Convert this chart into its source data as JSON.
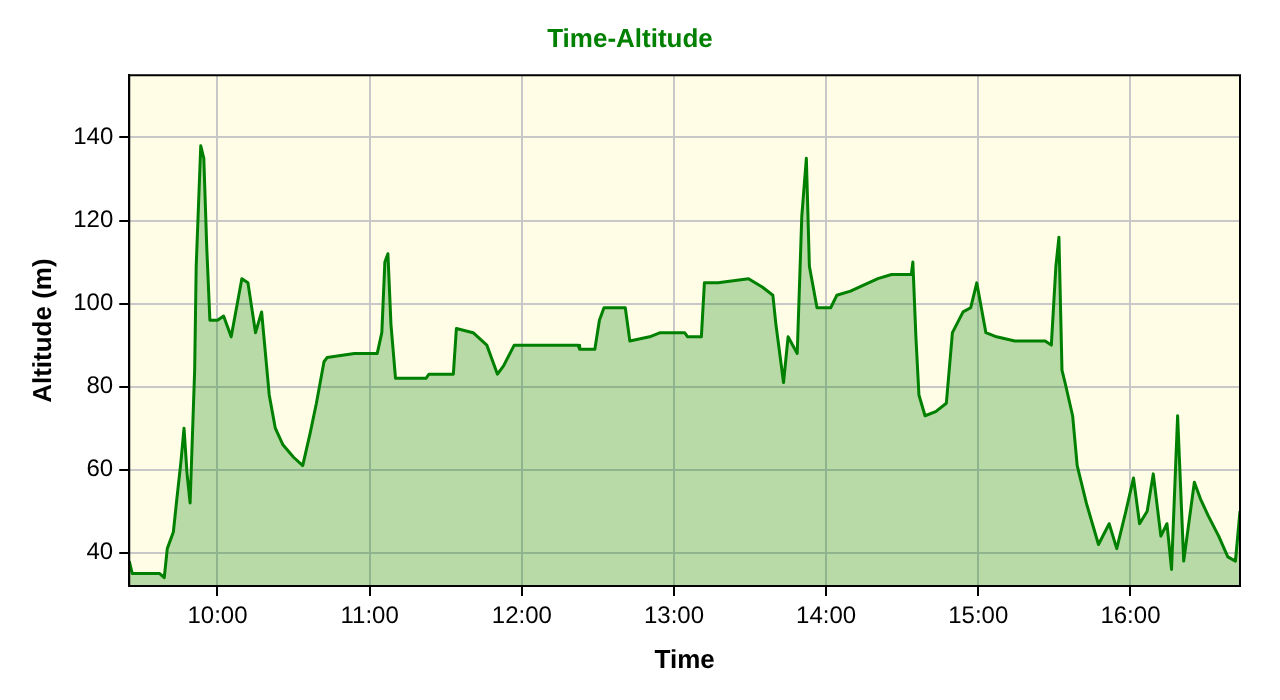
{
  "chart_data": {
    "type": "area",
    "title": "Time-Altitude",
    "xlabel": "Time",
    "ylabel": "Altitude (m)",
    "x": [
      9.42,
      9.44,
      9.62,
      9.65,
      9.67,
      9.71,
      9.73,
      9.76,
      9.78,
      9.8,
      9.82,
      9.85,
      9.86,
      9.89,
      9.91,
      9.93,
      9.95,
      10.0,
      10.04,
      10.09,
      10.16,
      10.2,
      10.25,
      10.29,
      10.34,
      10.38,
      10.43,
      10.5,
      10.56,
      10.61,
      10.65,
      10.7,
      10.72,
      10.9,
      11.05,
      11.08,
      11.1,
      11.12,
      11.14,
      11.17,
      11.37,
      11.39,
      11.55,
      11.57,
      11.68,
      11.77,
      11.84,
      11.88,
      11.95,
      12.37,
      12.38,
      12.48,
      12.51,
      12.54,
      12.68,
      12.71,
      12.84,
      12.91,
      13.07,
      13.09,
      13.18,
      13.2,
      13.29,
      13.49,
      13.58,
      13.65,
      13.67,
      13.72,
      13.75,
      13.81,
      13.84,
      13.87,
      13.89,
      13.94,
      14.03,
      14.07,
      14.16,
      14.34,
      14.43,
      14.56,
      14.57,
      14.59,
      14.61,
      14.65,
      14.72,
      14.79,
      14.83,
      14.9,
      14.95,
      14.99,
      15.05,
      15.12,
      15.24,
      15.44,
      15.48,
      15.51,
      15.53,
      15.55,
      15.57,
      15.62,
      15.65,
      15.71,
      15.75,
      15.79,
      15.86,
      15.91,
      15.97,
      16.02,
      16.06,
      16.11,
      16.15,
      16.2,
      16.24,
      16.27,
      16.31,
      16.35,
      16.42,
      16.46,
      16.51,
      16.58,
      16.64,
      16.69,
      16.72
    ],
    "series": [
      {
        "color": "#008000",
        "values": [
          38,
          35,
          35,
          34,
          41,
          45,
          52,
          62,
          70,
          59,
          52,
          84,
          109,
          138,
          135,
          113,
          96,
          96,
          97,
          92,
          106,
          105,
          93,
          98,
          78,
          70,
          66,
          63,
          61,
          69,
          76,
          86,
          87,
          88,
          88,
          93,
          110,
          112,
          95,
          82,
          82,
          83,
          83,
          94,
          93,
          90,
          83,
          85,
          90,
          90,
          89,
          89,
          96,
          99,
          99,
          91,
          92,
          93,
          93,
          92,
          92,
          105,
          105,
          106,
          104,
          102,
          95,
          81,
          92,
          88,
          121,
          135,
          109,
          99,
          99,
          102,
          103,
          106,
          107,
          107,
          110,
          92,
          78,
          73,
          74,
          76,
          93,
          98,
          99,
          105,
          93,
          92,
          91,
          91,
          90,
          109,
          116,
          84,
          81,
          73,
          61,
          52,
          47,
          42,
          47,
          41,
          50,
          58,
          47,
          50,
          59,
          44,
          47,
          36,
          73,
          38,
          57,
          53,
          49,
          44,
          39,
          38,
          50
        ]
      }
    ],
    "xlim": [
      9.42,
      16.72
    ],
    "xticks": [
      {
        "value": 10,
        "label": "10:00"
      },
      {
        "value": 11,
        "label": "11:00"
      },
      {
        "value": 12,
        "label": "12:00"
      },
      {
        "value": 13,
        "label": "13:00"
      },
      {
        "value": 14,
        "label": "14:00"
      },
      {
        "value": 15,
        "label": "15:00"
      },
      {
        "value": 16,
        "label": "16:00"
      }
    ],
    "ylim": [
      32,
      155
    ],
    "yticks": [
      40,
      60,
      80,
      100,
      120,
      140
    ],
    "grid": true,
    "legend": false,
    "marker": "none",
    "line_style": "solid"
  }
}
